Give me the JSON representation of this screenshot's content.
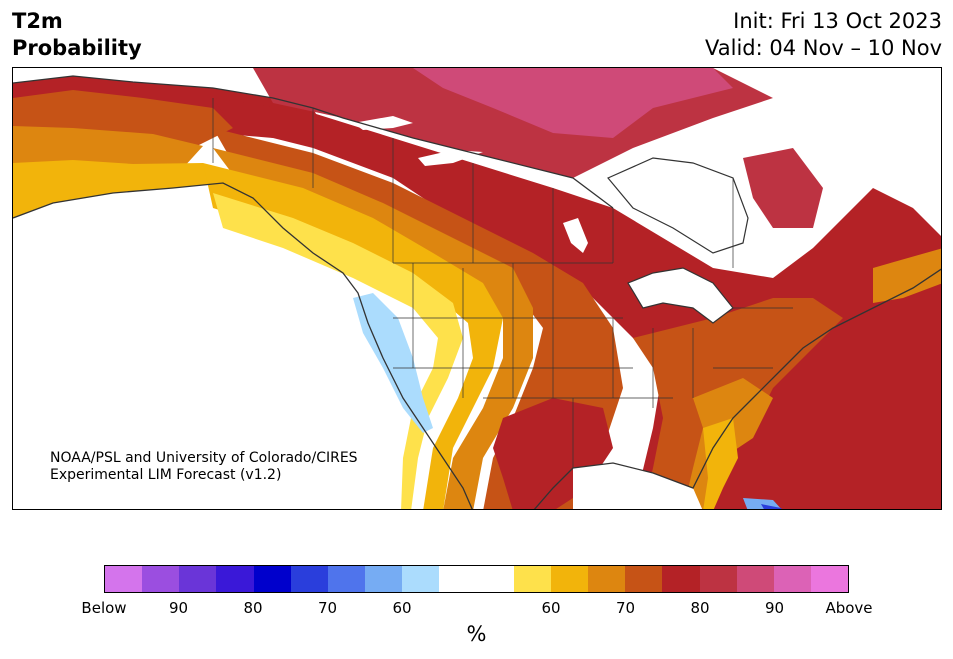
{
  "header": {
    "title_line1": "T2m",
    "title_line2": "Probability",
    "init": "Init: Fri 13 Oct 2023",
    "valid": "Valid: 04 Nov – 10 Nov"
  },
  "map": {
    "credit_line1": "NOAA/PSL and University of Colorado/CIRES",
    "credit_line2": "Experimental LIM Forecast (v1.2)"
  },
  "legend": {
    "unit": "%",
    "colors": [
      "#d474ec",
      "#9b4ee0",
      "#6a35d8",
      "#3a18d8",
      "#0000cc",
      "#2a3edc",
      "#4f74ec",
      "#76acf3",
      "#abdcfd",
      "#ffffff",
      "#ffffff",
      "#fee14b",
      "#f2b40b",
      "#dd8610",
      "#c65316",
      "#b42226",
      "#bd3342",
      "#cf4a78",
      "#dc62b6",
      "#eb76de"
    ],
    "tick_labels": [
      "Below",
      "90",
      "80",
      "70",
      "60",
      "60",
      "70",
      "80",
      "90",
      "Above"
    ]
  },
  "colors": {
    "above_70": "#c65316",
    "above_80": "#b42226",
    "above_85": "#bd3342",
    "above_60": "#f2b40b",
    "near_normal": "#ffffff",
    "below_55": "#abdcfd"
  }
}
